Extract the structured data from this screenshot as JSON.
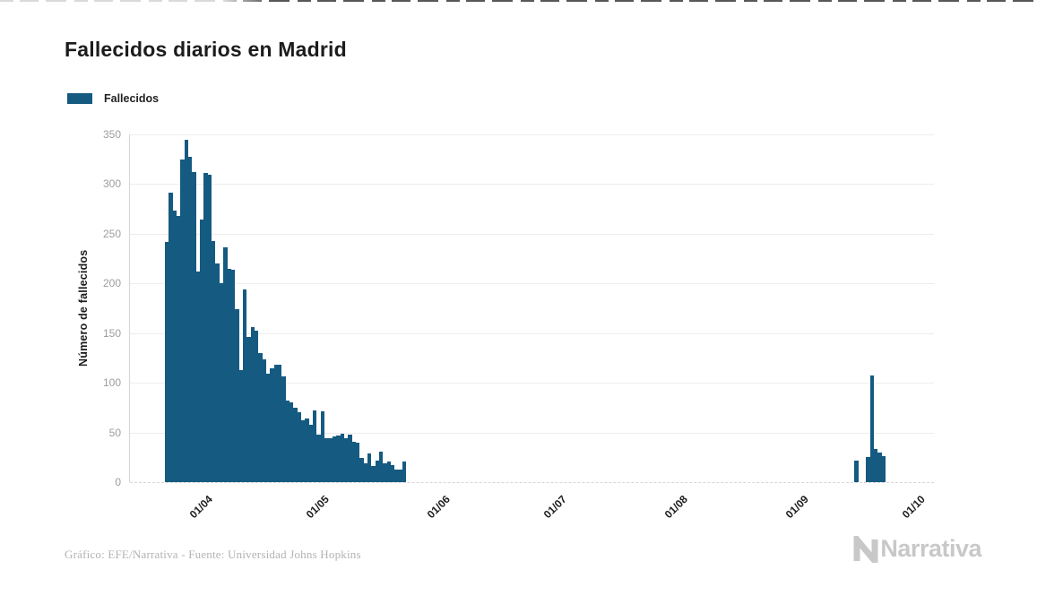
{
  "header": {
    "title": "Fallecidos diarios en Madrid"
  },
  "legend": {
    "label": "Fallecidos",
    "swatch_color": "#155a80"
  },
  "chart_data": {
    "type": "bar",
    "title": "Fallecidos diarios en Madrid",
    "series_name": "Fallecidos",
    "xlabel": "",
    "ylabel": "Número de fallecidos",
    "ylim": [
      0,
      350
    ],
    "y_ticks": [
      0,
      50,
      100,
      150,
      200,
      250,
      300,
      350
    ],
    "x_ticks": [
      "01/04",
      "01/05",
      "01/06",
      "01/07",
      "01/08",
      "01/09",
      "01/10"
    ],
    "grid": "horizontal",
    "legend_position": "top-left",
    "bar_color": "#155a80",
    "bars": [
      {
        "date": "22/03",
        "value": 242
      },
      {
        "date": "23/03",
        "value": 291
      },
      {
        "date": "24/03",
        "value": 273
      },
      {
        "date": "25/03",
        "value": 268
      },
      {
        "date": "26/03",
        "value": 325
      },
      {
        "date": "27/03",
        "value": 345
      },
      {
        "date": "28/03",
        "value": 327
      },
      {
        "date": "29/03",
        "value": 312
      },
      {
        "date": "30/03",
        "value": 212
      },
      {
        "date": "31/03",
        "value": 264
      },
      {
        "date": "01/04",
        "value": 311
      },
      {
        "date": "02/04",
        "value": 309
      },
      {
        "date": "03/04",
        "value": 243
      },
      {
        "date": "04/04",
        "value": 220
      },
      {
        "date": "05/04",
        "value": 200
      },
      {
        "date": "06/04",
        "value": 236
      },
      {
        "date": "07/04",
        "value": 215
      },
      {
        "date": "08/04",
        "value": 214
      },
      {
        "date": "09/04",
        "value": 174
      },
      {
        "date": "10/04",
        "value": 113
      },
      {
        "date": "11/04",
        "value": 194
      },
      {
        "date": "12/04",
        "value": 146
      },
      {
        "date": "13/04",
        "value": 156
      },
      {
        "date": "14/04",
        "value": 152
      },
      {
        "date": "15/04",
        "value": 130
      },
      {
        "date": "16/04",
        "value": 124
      },
      {
        "date": "17/04",
        "value": 109
      },
      {
        "date": "18/04",
        "value": 115
      },
      {
        "date": "19/04",
        "value": 118
      },
      {
        "date": "20/04",
        "value": 118
      },
      {
        "date": "21/04",
        "value": 106
      },
      {
        "date": "22/04",
        "value": 82
      },
      {
        "date": "23/04",
        "value": 80
      },
      {
        "date": "24/04",
        "value": 75
      },
      {
        "date": "25/04",
        "value": 70
      },
      {
        "date": "26/04",
        "value": 62
      },
      {
        "date": "27/04",
        "value": 64
      },
      {
        "date": "28/04",
        "value": 58
      },
      {
        "date": "29/04",
        "value": 72
      },
      {
        "date": "30/04",
        "value": 48
      },
      {
        "date": "01/05",
        "value": 71
      },
      {
        "date": "02/05",
        "value": 44
      },
      {
        "date": "03/05",
        "value": 44
      },
      {
        "date": "04/05",
        "value": 46
      },
      {
        "date": "05/05",
        "value": 47
      },
      {
        "date": "06/05",
        "value": 49
      },
      {
        "date": "07/05",
        "value": 44
      },
      {
        "date": "08/05",
        "value": 48
      },
      {
        "date": "09/05",
        "value": 41
      },
      {
        "date": "10/05",
        "value": 40
      },
      {
        "date": "11/05",
        "value": 24
      },
      {
        "date": "12/05",
        "value": 19
      },
      {
        "date": "13/05",
        "value": 29
      },
      {
        "date": "14/05",
        "value": 16
      },
      {
        "date": "15/05",
        "value": 22
      },
      {
        "date": "16/05",
        "value": 31
      },
      {
        "date": "17/05",
        "value": 19
      },
      {
        "date": "18/05",
        "value": 21
      },
      {
        "date": "19/05",
        "value": 17
      },
      {
        "date": "20/05",
        "value": 13
      },
      {
        "date": "21/05",
        "value": 13
      },
      {
        "date": "22/05",
        "value": 21
      },
      {
        "date": "15/09",
        "value": 22
      },
      {
        "date": "18/09",
        "value": 25
      },
      {
        "date": "19/09",
        "value": 107
      },
      {
        "date": "20/09",
        "value": 33
      },
      {
        "date": "21/09",
        "value": 30
      },
      {
        "date": "22/09",
        "value": 26
      }
    ]
  },
  "footer": {
    "credit": "Gráfico: EFE/Narrativa - Fuente: Universidad Johns Hopkins",
    "logo_text": "Narrativa"
  }
}
